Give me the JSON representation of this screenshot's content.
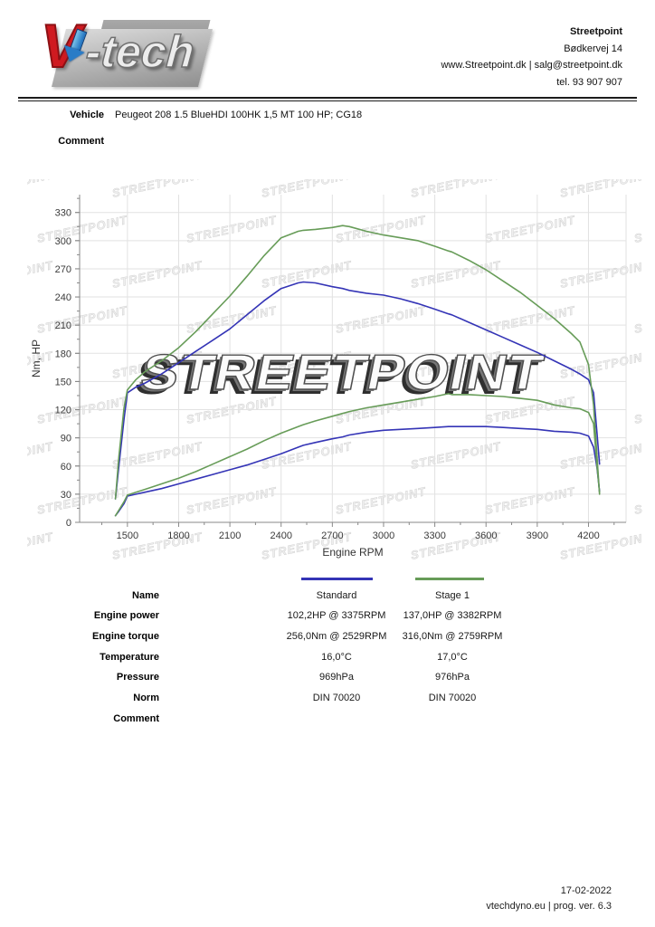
{
  "header": {
    "logo_text": "V-tech",
    "company": "Streetpoint",
    "address": "Bødkervej 14",
    "web_email": "www.Streetpoint.dk | salg@streetpoint.dk",
    "phone": "tel. 93 907 907"
  },
  "vehicle": {
    "label": "Vehicle",
    "value": "Peugeot 208 1.5 BlueHDI 100HK 1,5 MT 100 HP; CG18"
  },
  "comment": {
    "label": "Comment",
    "value": ""
  },
  "chart_data": {
    "type": "line",
    "xlabel": "Engine RPM",
    "ylabel": "Nm, HP",
    "xlim": [
      1220,
      4420
    ],
    "ylim": [
      0,
      349
    ],
    "x_ticks": [
      1500,
      1800,
      2100,
      2400,
      2700,
      3000,
      3300,
      3600,
      3900,
      4200
    ],
    "y_ticks": [
      0,
      30,
      60,
      90,
      120,
      150,
      180,
      210,
      240,
      270,
      300,
      330
    ],
    "grid": true,
    "watermark": "STREETPOINT",
    "x": [
      1430,
      1450,
      1480,
      1500,
      1550,
      1600,
      1700,
      1800,
      1900,
      2000,
      2100,
      2200,
      2300,
      2400,
      2500,
      2530,
      2600,
      2700,
      2760,
      2800,
      2900,
      3000,
      3100,
      3200,
      3300,
      3380,
      3400,
      3500,
      3600,
      3700,
      3800,
      3900,
      4000,
      4100,
      4150,
      4200,
      4230,
      4250,
      4265
    ],
    "series": [
      {
        "name": "Standard torque (Nm)",
        "color": "#3434b6",
        "values": [
          25,
          60,
          110,
          138,
          144,
          148,
          158,
          170,
          182,
          194,
          206,
          221,
          236,
          249,
          255,
          256,
          255,
          251,
          249,
          247,
          244,
          242,
          238,
          233,
          227,
          222,
          221,
          213,
          205,
          197,
          189,
          181,
          172,
          163,
          158,
          152,
          138,
          95,
          62
        ]
      },
      {
        "name": "Stage 1 torque (Nm)",
        "color": "#679c58",
        "values": [
          25,
          70,
          122,
          141,
          152,
          160,
          172,
          186,
          203,
          222,
          241,
          262,
          284,
          303,
          310,
          311,
          312,
          314,
          316,
          315,
          310,
          306,
          303,
          300,
          294,
          289,
          288,
          279,
          269,
          257,
          245,
          231,
          217,
          201,
          192,
          168,
          125,
          70,
          30
        ]
      },
      {
        "name": "Standard power (HP)",
        "color": "#3434b6",
        "values": [
          7,
          12,
          20,
          28,
          30,
          32,
          36,
          41,
          46,
          51,
          56,
          61,
          67,
          73,
          80,
          82,
          85,
          89,
          91,
          93,
          96,
          98,
          99,
          100,
          101,
          102,
          102,
          102,
          102,
          101,
          100,
          99,
          97,
          96,
          95,
          92,
          80,
          58,
          33
        ]
      },
      {
        "name": "Stage 1 power (HP)",
        "color": "#679c58",
        "values": [
          7,
          13,
          22,
          29,
          32,
          35,
          41,
          47,
          54,
          62,
          70,
          78,
          87,
          95,
          102,
          104,
          108,
          113,
          116,
          118,
          122,
          125,
          128,
          131,
          134,
          137,
          136,
          136,
          135,
          134,
          132,
          130,
          125,
          122,
          121,
          117,
          105,
          60,
          32
        ]
      }
    ],
    "legend": [
      {
        "label": "Standard",
        "color": "#3434b6"
      },
      {
        "label": "Stage 1",
        "color": "#679c58"
      }
    ]
  },
  "table": {
    "rows": [
      {
        "label": "Name",
        "standard": "Standard",
        "stage1": "Stage 1"
      },
      {
        "label": "Engine power",
        "standard": "102,2HP @ 3375RPM",
        "stage1": "137,0HP @ 3382RPM"
      },
      {
        "label": "Engine torque",
        "standard": "256,0Nm @ 2529RPM",
        "stage1": "316,0Nm @ 2759RPM"
      },
      {
        "label": "Temperature",
        "standard": "16,0°C",
        "stage1": "17,0°C"
      },
      {
        "label": "Pressure",
        "standard": "969hPa",
        "stage1": "976hPa"
      },
      {
        "label": "Norm",
        "standard": "DIN 70020",
        "stage1": "DIN 70020"
      },
      {
        "label": "Comment",
        "standard": "",
        "stage1": ""
      }
    ]
  },
  "footer": {
    "date": "17-02-2022",
    "program": "vtechdyno.eu | prog. ver. 6.3"
  }
}
